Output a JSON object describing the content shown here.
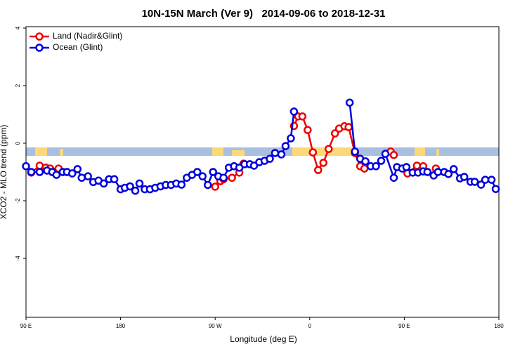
{
  "chart_data": {
    "type": "line",
    "title": "10N-15N March (Ver 9)   2014-09-06 to 2018-12-31",
    "x_label": "Longitude (deg E)",
    "y_label": "XCO2 - MLO trend (ppm)",
    "xlim": [
      90,
      540
    ],
    "ylim": [
      -6,
      4
    ],
    "xticks": [
      {
        "value": 90,
        "label": "90 E"
      },
      {
        "value": 180,
        "label": "180"
      },
      {
        "value": 270,
        "label": "90 W"
      },
      {
        "value": 360,
        "label": "0"
      },
      {
        "value": 450,
        "label": "90 E"
      },
      {
        "value": 540,
        "label": "180"
      }
    ],
    "yticks": [
      4,
      2,
      0,
      -2,
      -4
    ],
    "legend": "top-left",
    "series": [
      {
        "name": "Land (Nadir&Glint)",
        "color": "#ee0000",
        "x": [
          95,
          103,
          109,
          113,
          121,
          null,
          270,
          275,
          278,
          286,
          293,
          297,
          null,
          345,
          349,
          353,
          358,
          363,
          368,
          373,
          378,
          384,
          388,
          393,
          397,
          403,
          408,
          412,
          null,
          437,
          440,
          null,
          453,
          462,
          468,
          null,
          480
        ],
        "values": [
          -1.02,
          -0.78,
          -0.85,
          -0.88,
          -0.88,
          null,
          -1.51,
          -1.32,
          -1.25,
          -1.2,
          -1.02,
          -0.71,
          null,
          0.6,
          0.93,
          0.93,
          0.46,
          -0.32,
          -0.93,
          -0.68,
          -0.2,
          0.34,
          0.51,
          0.59,
          0.56,
          -0.34,
          -0.8,
          -0.88,
          null,
          -0.29,
          -0.41,
          null,
          -1.05,
          -0.78,
          -0.8,
          null,
          -0.88
        ]
      },
      {
        "name": "Ocean (Glint)",
        "color": "#0000dd",
        "x": [
          90,
          95,
          103,
          110,
          115,
          119,
          125,
          129,
          134,
          139,
          143,
          149,
          154,
          159,
          164,
          169,
          174,
          180,
          184,
          189,
          194,
          198,
          203,
          208,
          213,
          218,
          223,
          228,
          233,
          238,
          243,
          248,
          253,
          258,
          263,
          268,
          273,
          278,
          283,
          288,
          293,
          298,
          303,
          307,
          312,
          317,
          322,
          327,
          333,
          337,
          342,
          345,
          null,
          398,
          403,
          408,
          413,
          418,
          423,
          428,
          432,
          440,
          443,
          448,
          452,
          458,
          463,
          468,
          472,
          478,
          482,
          488,
          492,
          497,
          503,
          507,
          513,
          517,
          523,
          527,
          533,
          537
        ],
        "values": [
          -0.8,
          -1.0,
          -1.0,
          -0.95,
          -1.0,
          -1.1,
          -1.0,
          -1.0,
          -1.05,
          -0.9,
          -1.2,
          -1.15,
          -1.35,
          -1.3,
          -1.4,
          -1.25,
          -1.25,
          -1.6,
          -1.55,
          -1.5,
          -1.65,
          -1.4,
          -1.6,
          -1.6,
          -1.55,
          -1.5,
          -1.45,
          -1.45,
          -1.4,
          -1.44,
          -1.2,
          -1.1,
          -1.0,
          -1.15,
          -1.45,
          -1.0,
          -1.15,
          -1.2,
          -0.85,
          -0.8,
          -0.85,
          -0.73,
          -0.73,
          -0.78,
          -0.66,
          -0.61,
          -0.54,
          -0.34,
          -0.39,
          -0.1,
          0.17,
          1.1,
          null,
          1.41,
          -0.29,
          -0.54,
          -0.63,
          -0.8,
          -0.8,
          -0.61,
          -0.37,
          -1.2,
          -0.83,
          -0.88,
          -0.83,
          -1.02,
          -1.02,
          -0.98,
          -1.0,
          -1.12,
          -1.0,
          -1.0,
          -1.07,
          -0.9,
          -1.22,
          -1.17,
          -1.34,
          -1.34,
          -1.44,
          -1.27,
          -1.27,
          -1.59
        ]
      }
    ]
  }
}
